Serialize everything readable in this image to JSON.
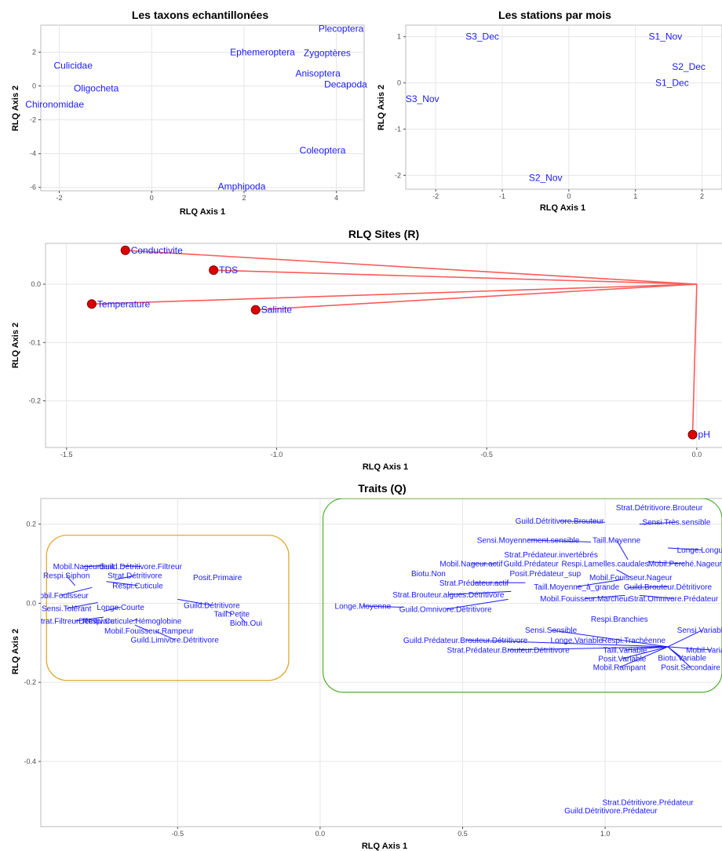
{
  "chart_data": [
    {
      "type": "scatter",
      "title": "Les taxons echantillonées",
      "xlabel": "RLQ Axis 1",
      "ylabel": "RLQ Axis 2",
      "xlim": [
        -2.4,
        4.6
      ],
      "ylim": [
        -6.2,
        3.6
      ],
      "xticks": [
        -2,
        0,
        2,
        4
      ],
      "yticks": [
        -6,
        -4,
        -2,
        0,
        2
      ],
      "grid": true,
      "points": [
        {
          "label": "Plecoptera",
          "x": 4.1,
          "y": 3.4
        },
        {
          "label": "Ephemeroptera",
          "x": 2.4,
          "y": 2.0
        },
        {
          "label": "Zygoptères",
          "x": 3.8,
          "y": 1.95
        },
        {
          "label": "Culicidae",
          "x": -1.7,
          "y": 1.2
        },
        {
          "label": "Anisoptera",
          "x": 3.6,
          "y": 0.75
        },
        {
          "label": "Decapoda",
          "x": 4.2,
          "y": 0.1
        },
        {
          "label": "Oligocheta",
          "x": -1.2,
          "y": -0.15
        },
        {
          "label": "Chironomidae",
          "x": -2.1,
          "y": -1.1
        },
        {
          "label": "Coleoptera",
          "x": 3.7,
          "y": -3.8
        },
        {
          "label": "Amphipoda",
          "x": 1.95,
          "y": -5.95
        }
      ]
    },
    {
      "type": "scatter",
      "title": "Les stations par mois",
      "xlabel": "RLQ Axis 1",
      "ylabel": "RLQ Axis 2",
      "xlim": [
        -2.45,
        2.3
      ],
      "ylim": [
        -2.3,
        1.25
      ],
      "xticks": [
        -2,
        -1,
        0,
        1,
        2
      ],
      "yticks": [
        -2,
        -1,
        0,
        1
      ],
      "grid": true,
      "points": [
        {
          "label": "S3_Dec",
          "x": -1.3,
          "y": 1.0
        },
        {
          "label": "S1_Nov",
          "x": 1.45,
          "y": 1.0
        },
        {
          "label": "S2_Dec",
          "x": 1.8,
          "y": 0.35
        },
        {
          "label": "S1_Dec",
          "x": 1.55,
          "y": 0.0
        },
        {
          "label": "S3_Nov",
          "x": -2.2,
          "y": -0.35
        },
        {
          "label": "S2_Nov",
          "x": -0.35,
          "y": -2.05
        }
      ]
    },
    {
      "type": "scatter",
      "title": "RLQ Sites (R)",
      "xlabel": "RLQ Axis 1",
      "ylabel": "RLQ Axis 2",
      "xlim": [
        -1.55,
        0.06
      ],
      "ylim": [
        -0.28,
        0.07
      ],
      "xticks": [
        -1.5,
        -1.0,
        -0.5,
        0.0
      ],
      "yticks": [
        -0.2,
        -0.1,
        0.0
      ],
      "grid": true,
      "origin": [
        0,
        0
      ],
      "points": [
        {
          "label": "Conductivite",
          "x": -1.36,
          "y": 0.058
        },
        {
          "label": "TDS",
          "x": -1.15,
          "y": 0.024
        },
        {
          "label": "Temperature",
          "x": -1.44,
          "y": -0.034
        },
        {
          "label": "Salinite",
          "x": -1.05,
          "y": -0.044
        },
        {
          "label": "pH",
          "x": -0.01,
          "y": -0.258
        }
      ]
    },
    {
      "type": "scatter",
      "title": "Traits (Q)",
      "xlabel": "RLQ Axis 1",
      "ylabel": "RLQ Axis 2",
      "xlim": [
        -0.98,
        1.41
      ],
      "ylim": [
        -0.565,
        0.265
      ],
      "xticks": [
        -0.5,
        0.0,
        0.5,
        1.0
      ],
      "yticks": [
        -0.4,
        -0.2,
        0.0,
        0.2
      ],
      "grid": true,
      "groups": [
        {
          "color": "#d9a21b",
          "x0": -0.96,
          "x1": -0.11,
          "y0": -0.195,
          "y1": 0.172
        },
        {
          "color": "#4caf2a",
          "x0": 0.01,
          "x1": 1.41,
          "y0": -0.225,
          "y1": 0.265
        }
      ],
      "labels": [
        {
          "text": "Mobil.Nageur.lent",
          "x": -0.83,
          "y": 0.093,
          "px": -0.76,
          "py": 0.095
        },
        {
          "text": "Guild.Détritivore.Filtreur",
          "x": -0.63,
          "y": 0.093,
          "px": -0.7,
          "py": 0.095
        },
        {
          "text": "Respi.Siphon",
          "x": -0.89,
          "y": 0.07,
          "px": -0.86,
          "py": 0.045
        },
        {
          "text": "Strat.Détritivore",
          "x": -0.65,
          "y": 0.07,
          "px": -0.72,
          "py": 0.06
        },
        {
          "text": "Posit.Primaire",
          "x": -0.36,
          "y": 0.065
        },
        {
          "text": "Respi.Cuticule",
          "x": -0.64,
          "y": 0.045,
          "px": -0.75,
          "py": 0.055
        },
        {
          "text": "Mobil.Fouisseur",
          "x": -0.91,
          "y": 0.02,
          "px": -0.8,
          "py": 0.04
        },
        {
          "text": "Guild.Détritivore",
          "x": -0.38,
          "y": -0.005,
          "px": -0.5,
          "py": 0.01
        },
        {
          "text": "Sensi.Tolérant",
          "x": -0.89,
          "y": -0.013,
          "px": -0.78,
          "py": 0.002
        },
        {
          "text": "Longe.Courte",
          "x": -0.7,
          "y": -0.01,
          "px": -0.76,
          "py": -0.02
        },
        {
          "text": "Taill.Petite",
          "x": -0.31,
          "y": -0.027,
          "px": -0.33,
          "py": -0.02
        },
        {
          "text": "Strat.FiltreurDétritivore",
          "x": -0.86,
          "y": -0.045,
          "px": -0.76,
          "py": -0.035
        },
        {
          "text": "Respi.Cuticule.Hémoglobine",
          "x": -0.66,
          "y": -0.045,
          "px": -0.64,
          "py": -0.04
        },
        {
          "text": "Biotu.Oui",
          "x": -0.26,
          "y": -0.05,
          "px": -0.28,
          "py": -0.035
        },
        {
          "text": "Mobil.Fouisseur.Rampeur",
          "x": -0.6,
          "y": -0.07,
          "px": -0.65,
          "py": -0.055
        },
        {
          "text": "Guild.Limivore.Détritivore",
          "x": -0.51,
          "y": -0.092,
          "px": -0.58,
          "py": -0.07
        },
        {
          "text": "Strat.Détritivore.Brouteur",
          "x": 1.19,
          "y": 0.242
        },
        {
          "text": "Guild.Détritivore.Brouteur",
          "x": 0.84,
          "y": 0.208,
          "px": 1.0,
          "py": 0.205
        },
        {
          "text": "Sensi.Très.sensible",
          "x": 1.25,
          "y": 0.205,
          "px": 1.12,
          "py": 0.2
        },
        {
          "text": "Sensi.Moyennement.sensible",
          "x": 0.73,
          "y": 0.16,
          "px": 0.95,
          "py": 0.155
        },
        {
          "text": "Taill.Moyenne",
          "x": 1.04,
          "y": 0.16,
          "px": 1.08,
          "py": 0.11
        },
        {
          "text": "Longe.Longue",
          "x": 1.34,
          "y": 0.135,
          "px": 1.22,
          "py": 0.14
        },
        {
          "text": "Strat.Prédateur.invertébrés",
          "x": 0.81,
          "y": 0.123
        },
        {
          "text": "Mobil.Nageur.actif",
          "x": 0.53,
          "y": 0.1,
          "px": 0.62,
          "py": 0.1
        },
        {
          "text": "Guild.Prédateur",
          "x": 0.74,
          "y": 0.1
        },
        {
          "text": "Respi.Lamelles.caudales",
          "x": 1.0,
          "y": 0.1
        },
        {
          "text": "Mobil.Perché.Nageur",
          "x": 1.28,
          "y": 0.1,
          "px": 1.15,
          "py": 0.105
        },
        {
          "text": "Biotu.Non",
          "x": 0.38,
          "y": 0.075
        },
        {
          "text": "Posit.Prédateur_sup",
          "x": 0.79,
          "y": 0.075
        },
        {
          "text": "Mobil.Fouisseur.Nageur",
          "x": 1.09,
          "y": 0.065,
          "px": 1.04,
          "py": 0.085
        },
        {
          "text": "Strat.Prédateur.actif",
          "x": 0.54,
          "y": 0.052,
          "px": 0.72,
          "py": 0.052
        },
        {
          "text": "Taill.Moyenne_à_grande",
          "x": 0.9,
          "y": 0.042,
          "px": 1.06,
          "py": 0.06
        },
        {
          "text": "Guild.Brouteur.Détritivore",
          "x": 1.22,
          "y": 0.042,
          "px": 1.08,
          "py": 0.04
        },
        {
          "text": "Strat.Brouteur.algues.Détritivore",
          "x": 0.45,
          "y": 0.022,
          "px": 0.67,
          "py": 0.03
        },
        {
          "text": "Mobil.Fouisseur.Marcheur",
          "x": 0.93,
          "y": 0.012,
          "px": 1.07,
          "py": 0.02
        },
        {
          "text": "Strat.Omnivore.Prédateur",
          "x": 1.24,
          "y": 0.012,
          "px": 1.12,
          "py": 0.02
        },
        {
          "text": "Longe.Moyenne",
          "x": 0.15,
          "y": -0.007,
          "px": 0.29,
          "py": -0.01
        },
        {
          "text": "Guild.Omnivore.Détritivore",
          "x": 0.44,
          "y": -0.015,
          "px": 0.66,
          "py": 0.01
        },
        {
          "text": "Respi.Branchies",
          "x": 1.05,
          "y": -0.04
        },
        {
          "text": "Sensi.Sensible",
          "x": 0.81,
          "y": -0.068,
          "px": 1.22,
          "py": -0.11
        },
        {
          "text": "Sensi.Variable",
          "x": 1.34,
          "y": -0.068,
          "px": 1.22,
          "py": -0.11
        },
        {
          "text": "Guild.Prédateur.Brouteur.Détritivore",
          "x": 0.51,
          "y": -0.093,
          "px": 1.22,
          "py": -0.11
        },
        {
          "text": "Longe.Variable",
          "x": 0.9,
          "y": -0.093
        },
        {
          "text": "Respi.Trachéenne",
          "x": 1.1,
          "y": -0.093
        },
        {
          "text": "Strat.Prédateur.Brouteur.Détritivore",
          "x": 0.66,
          "y": -0.118,
          "px": 1.22,
          "py": -0.11
        },
        {
          "text": "Taill.Variable",
          "x": 1.07,
          "y": -0.118,
          "px": 1.22,
          "py": -0.11
        },
        {
          "text": "Mobil.Variable",
          "x": 1.37,
          "y": -0.118,
          "px": 1.22,
          "py": -0.11
        },
        {
          "text": "Posit.Variable",
          "x": 1.06,
          "y": -0.14,
          "px": 1.22,
          "py": -0.11
        },
        {
          "text": "Biotu.Variable",
          "x": 1.27,
          "y": -0.138,
          "px": 1.22,
          "py": -0.11
        },
        {
          "text": "Mobil.Rampant",
          "x": 1.05,
          "y": -0.162,
          "px": 1.22,
          "py": -0.11
        },
        {
          "text": "Posit.Secondaire",
          "x": 1.3,
          "y": -0.162,
          "px": 1.22,
          "py": -0.11
        },
        {
          "text": "Strat.Détritivore.Prédateur",
          "x": 1.15,
          "y": -0.503
        },
        {
          "text": "Guild.Détritivore.Prédateur",
          "x": 1.02,
          "y": -0.524
        }
      ]
    }
  ]
}
